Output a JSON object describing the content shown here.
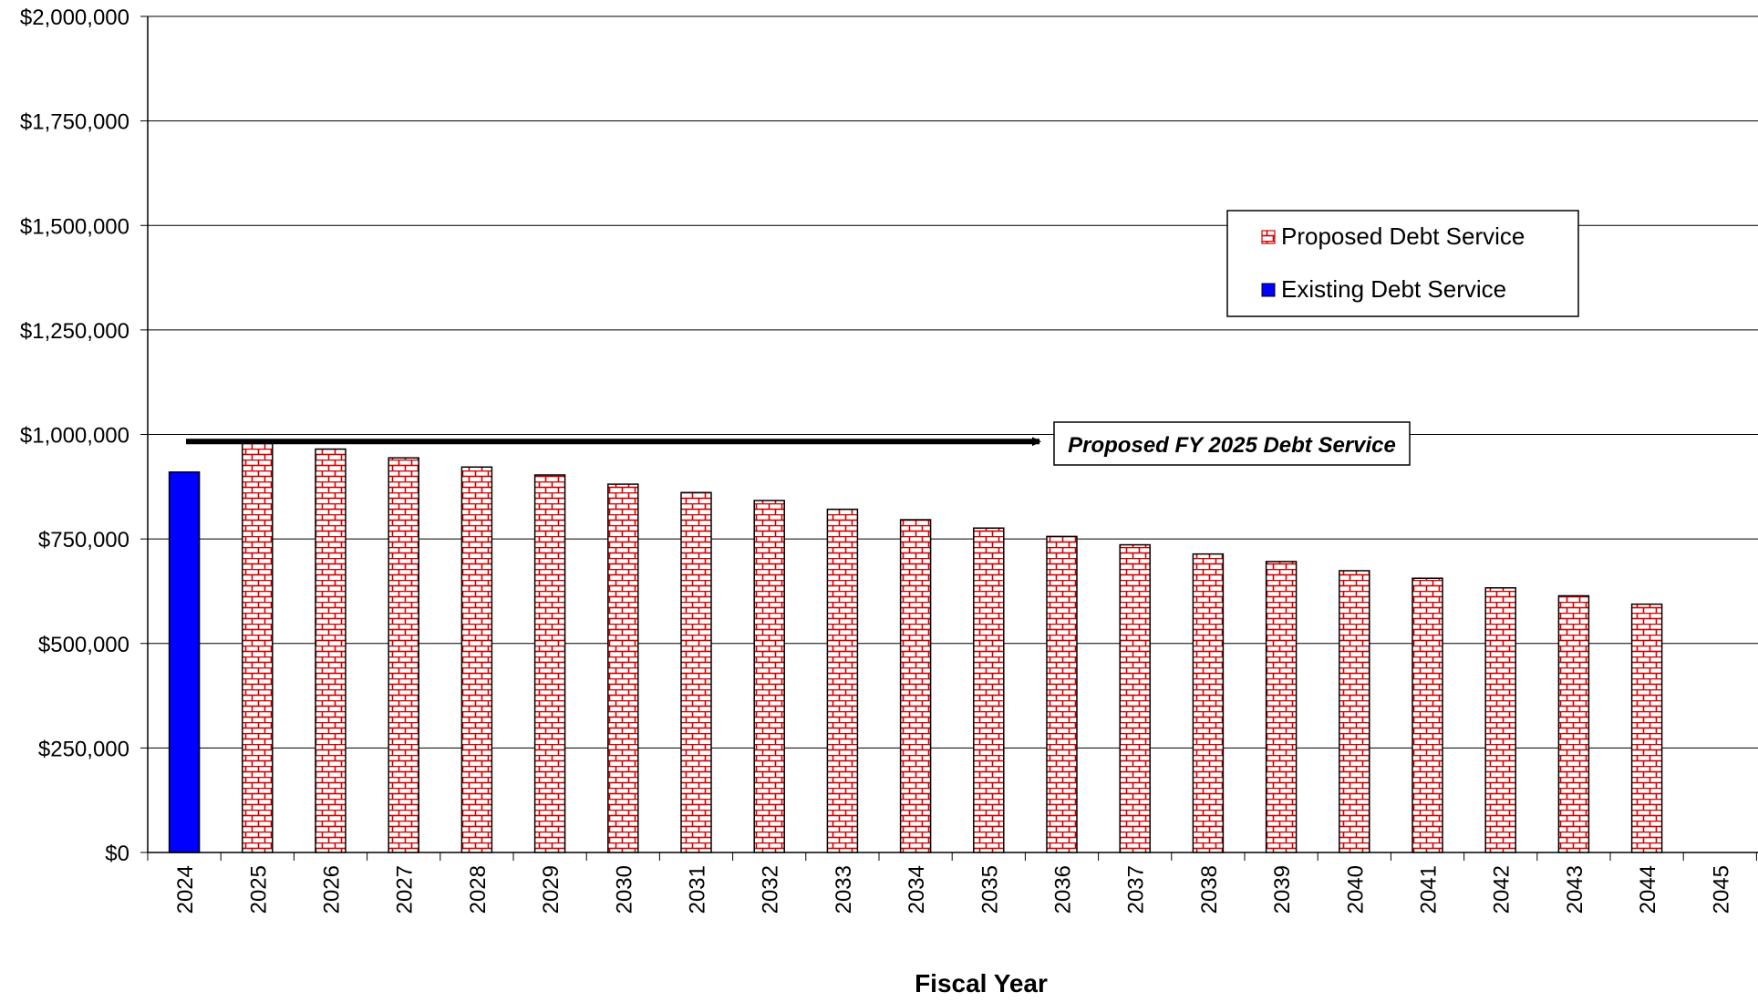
{
  "chart_data": {
    "type": "bar",
    "xlabel": "Fiscal Year",
    "ylabel": "",
    "ylim": [
      0,
      2000000
    ],
    "yticks": [
      0,
      250000,
      500000,
      750000,
      1000000,
      1250000,
      1500000,
      1750000,
      2000000
    ],
    "ytick_labels": [
      "$0",
      "$250,000",
      "$500,000",
      "$750,000",
      "$1,000,000",
      "$1,250,000",
      "$1,500,000",
      "$1,750,000",
      "$2,000,000"
    ],
    "categories": [
      "2024",
      "2025",
      "2026",
      "2027",
      "2028",
      "2029",
      "2030",
      "2031",
      "2032",
      "2033",
      "2034",
      "2035",
      "2036",
      "2037",
      "2038",
      "2039",
      "2040",
      "2041",
      "2042",
      "2043",
      "2044",
      "2045"
    ],
    "grid": true,
    "legend_position": "upper-right",
    "series": [
      {
        "name": "Proposed Debt Service",
        "color": "#d00000",
        "fill": "red-brick-pattern",
        "values": [
          0,
          983000,
          965000,
          944000,
          922000,
          903000,
          881000,
          861000,
          842000,
          821000,
          796000,
          776000,
          756000,
          736000,
          714000,
          696000,
          674000,
          656000,
          633000,
          614000,
          594000,
          0
        ]
      },
      {
        "name": "Existing Debt Service",
        "color": "#0000ff",
        "fill": "solid",
        "values": [
          910000,
          0,
          0,
          0,
          0,
          0,
          0,
          0,
          0,
          0,
          0,
          0,
          0,
          0,
          0,
          0,
          0,
          0,
          0,
          0,
          0,
          0
        ]
      }
    ],
    "legend": [
      "Proposed Debt Service",
      "Existing Debt Service"
    ],
    "annotation": {
      "text": "Proposed  FY 2025 Debt Service",
      "value": 983000
    }
  }
}
